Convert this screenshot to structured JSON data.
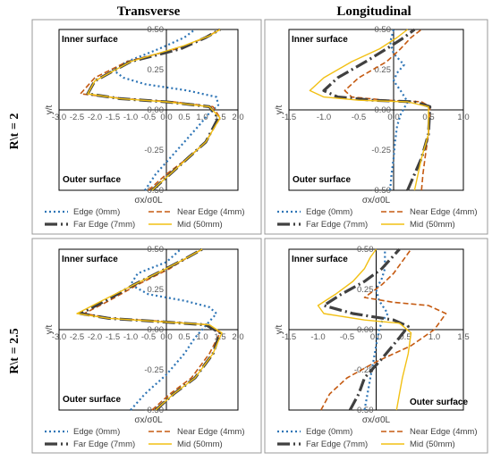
{
  "figure": {
    "column_titles": [
      "Transverse",
      "Longitudinal"
    ],
    "row_labels": [
      "R\\t = 2",
      "R\\t = 2.5"
    ]
  },
  "legend": [
    {
      "label": "Edge (0mm)",
      "color": "#2E75B6",
      "dash": "dotted"
    },
    {
      "label": "Near Edge (4mm)",
      "color": "#C55A11",
      "dash": "dashed"
    },
    {
      "label": "Far Edge (7mm)",
      "color": "#404040",
      "dash": "long-dash-dot"
    },
    {
      "label": "Mid (50mm)",
      "color": "#F2C014",
      "dash": "solid"
    }
  ],
  "chart_data": [
    {
      "type": "line",
      "title": "Transverse",
      "xlabel": "σx/σ0L",
      "ylabel": "y/t",
      "xlim": [
        -3.0,
        2.0
      ],
      "ylim": [
        -0.5,
        0.5
      ],
      "xticks": [
        "-3.0",
        "-2.5",
        "-2.0",
        "-1.5",
        "-1.0",
        "-0.5",
        "0.0",
        "0.5",
        "1.0",
        "1.5",
        "2.0"
      ],
      "yticks": [
        "-0.50",
        "-0.25",
        "0.00",
        "0.25",
        "0.50"
      ],
      "annotations": [
        "Inner surface",
        "Outer surface"
      ],
      "series": [
        {
          "name": "Edge (0mm)",
          "x": [
            -0.6,
            -0.3,
            0.1,
            0.5,
            0.9,
            1.2,
            1.45,
            1.4,
            0.6,
            -0.6,
            -1.2,
            -1.5,
            -1.1,
            -0.2,
            0.5,
            0.8
          ],
          "y": [
            -0.5,
            -0.4,
            -0.3,
            -0.2,
            -0.1,
            -0.02,
            0.03,
            0.08,
            0.12,
            0.16,
            0.2,
            0.25,
            0.3,
            0.38,
            0.45,
            0.5
          ]
        },
        {
          "name": "Near Edge (4mm)",
          "x": [
            -0.5,
            0.0,
            0.6,
            1.1,
            1.5,
            1.3,
            0.2,
            -1.2,
            -2.4,
            -2.0,
            -1.1,
            0.3,
            1.1,
            1.5
          ],
          "y": [
            -0.5,
            -0.4,
            -0.3,
            -0.2,
            -0.05,
            0.02,
            0.05,
            0.07,
            0.1,
            0.2,
            0.3,
            0.38,
            0.45,
            0.5
          ]
        },
        {
          "name": "Far Edge (7mm)",
          "x": [
            -0.4,
            0.1,
            0.6,
            1.1,
            1.45,
            1.2,
            0.0,
            -1.3,
            -2.2,
            -2.0,
            -1.0,
            0.4,
            1.1,
            1.5
          ],
          "y": [
            -0.5,
            -0.4,
            -0.3,
            -0.2,
            -0.05,
            0.02,
            0.05,
            0.07,
            0.1,
            0.18,
            0.3,
            0.38,
            0.45,
            0.5
          ]
        },
        {
          "name": "Mid (50mm)",
          "x": [
            -0.4,
            0.1,
            0.6,
            1.1,
            1.5,
            1.2,
            0.0,
            -1.3,
            -2.2,
            -2.0,
            -1.0,
            0.5,
            1.2,
            1.5
          ],
          "y": [
            -0.5,
            -0.4,
            -0.3,
            -0.2,
            -0.05,
            0.02,
            0.05,
            0.07,
            0.1,
            0.18,
            0.3,
            0.4,
            0.46,
            0.5
          ]
        }
      ]
    },
    {
      "type": "line",
      "title": "Longitudinal",
      "xlabel": "σx/σ0L",
      "ylabel": "y/t",
      "xlim": [
        -1.5,
        1.0
      ],
      "ylim": [
        -0.5,
        0.5
      ],
      "xticks": [
        "-1.5",
        "-1.0",
        "-0.5",
        "0.0",
        "0.5",
        "1.0"
      ],
      "yticks": [
        "-0.50",
        "-0.25",
        "0.00",
        "0.25",
        "0.50"
      ],
      "annotations": [
        "Inner surface",
        "Outer surface"
      ],
      "series": [
        {
          "name": "Edge (0mm)",
          "x": [
            -0.05,
            -0.03,
            0.0,
            0.02,
            0.05,
            0.1,
            0.2,
            0.1,
            0.0,
            0.05,
            0.15,
            0.0,
            -0.05,
            0.0
          ],
          "y": [
            -0.5,
            -0.4,
            -0.3,
            -0.2,
            -0.1,
            -0.03,
            0.05,
            0.12,
            0.18,
            0.23,
            0.28,
            0.35,
            0.42,
            0.5
          ]
        },
        {
          "name": "Near Edge (4mm)",
          "x": [
            0.4,
            0.42,
            0.45,
            0.5,
            0.52,
            0.4,
            -0.1,
            -0.6,
            -0.7,
            -0.5,
            -0.1,
            0.1,
            0.25,
            0.4
          ],
          "y": [
            -0.5,
            -0.4,
            -0.3,
            -0.15,
            0.02,
            0.05,
            0.06,
            0.08,
            0.12,
            0.2,
            0.3,
            0.38,
            0.45,
            0.5
          ]
        },
        {
          "name": "Far Edge (7mm)",
          "x": [
            0.2,
            0.3,
            0.4,
            0.5,
            0.52,
            0.3,
            -0.3,
            -0.8,
            -1.0,
            -0.8,
            -0.4,
            -0.1,
            0.15,
            0.3
          ],
          "y": [
            -0.5,
            -0.4,
            -0.3,
            -0.15,
            0.02,
            0.05,
            0.06,
            0.08,
            0.12,
            0.2,
            0.3,
            0.38,
            0.45,
            0.5
          ]
        },
        {
          "name": "Mid (50mm)",
          "x": [
            0.3,
            0.35,
            0.4,
            0.5,
            0.5,
            0.2,
            -0.5,
            -1.0,
            -1.2,
            -1.0,
            -0.6,
            -0.2,
            0.05,
            0.2
          ],
          "y": [
            -0.5,
            -0.4,
            -0.3,
            -0.15,
            0.02,
            0.05,
            0.06,
            0.08,
            0.12,
            0.2,
            0.3,
            0.38,
            0.45,
            0.5
          ]
        }
      ]
    },
    {
      "type": "line",
      "title": "Transverse",
      "xlabel": "σx/σ0L",
      "ylabel": "y/t",
      "xlim": [
        -3.0,
        2.0
      ],
      "ylim": [
        -0.5,
        0.5
      ],
      "xticks": [
        "-3.0",
        "-2.5",
        "-2.0",
        "-1.5",
        "-1.0",
        "-0.5",
        "0.0",
        "0.5",
        "1.0",
        "1.5",
        "2.0"
      ],
      "yticks": [
        "-0.50",
        "-0.25",
        "0.00",
        "0.25",
        "0.50"
      ],
      "annotations": [
        "Inner surface",
        "Outer surface"
      ],
      "series": [
        {
          "name": "Edge (0mm)",
          "x": [
            -1.0,
            -0.6,
            0.0,
            0.5,
            0.8,
            1.0,
            1.2,
            1.4,
            1.2,
            0.5,
            -0.5,
            -1.0,
            -0.8,
            0.0,
            0.4
          ],
          "y": [
            -0.5,
            -0.4,
            -0.28,
            -0.15,
            -0.05,
            0.0,
            0.05,
            0.1,
            0.14,
            0.18,
            0.22,
            0.28,
            0.35,
            0.42,
            0.5
          ]
        },
        {
          "name": "Near Edge (4mm)",
          "x": [
            -0.4,
            0.1,
            0.7,
            1.2,
            1.5,
            1.2,
            0.0,
            -1.5,
            -2.3,
            -1.6,
            -0.8,
            0.1,
            0.6,
            1.0
          ],
          "y": [
            -0.5,
            -0.4,
            -0.3,
            -0.15,
            -0.02,
            0.03,
            0.05,
            0.07,
            0.1,
            0.18,
            0.28,
            0.38,
            0.45,
            0.5
          ]
        },
        {
          "name": "Far Edge (7mm)",
          "x": [
            -0.3,
            0.2,
            0.8,
            1.3,
            1.5,
            1.1,
            -0.2,
            -1.6,
            -2.4,
            -1.7,
            -0.9,
            0.0,
            0.6,
            1.0
          ],
          "y": [
            -0.5,
            -0.4,
            -0.3,
            -0.15,
            -0.02,
            0.03,
            0.05,
            0.07,
            0.1,
            0.18,
            0.28,
            0.38,
            0.45,
            0.5
          ]
        },
        {
          "name": "Mid (50mm)",
          "x": [
            -0.3,
            0.2,
            0.8,
            1.3,
            1.55,
            1.2,
            -0.2,
            -1.6,
            -2.5,
            -1.8,
            -0.9,
            0.0,
            0.6,
            1.0
          ],
          "y": [
            -0.5,
            -0.4,
            -0.3,
            -0.15,
            -0.02,
            0.03,
            0.05,
            0.07,
            0.1,
            0.18,
            0.28,
            0.38,
            0.45,
            0.5
          ]
        }
      ]
    },
    {
      "type": "line",
      "title": "Longitudinal",
      "xlabel": "σx/σ0L",
      "ylabel": "y/t",
      "xlim": [
        -1.5,
        1.5
      ],
      "ylim": [
        -0.5,
        0.5
      ],
      "xticks": [
        "-1.5",
        "-1.0",
        "-0.5",
        "0.0",
        "0.5",
        "1.0",
        "1.5"
      ],
      "yticks": [
        "-0.50",
        "-0.25",
        "0.00",
        "0.25",
        "0.50"
      ],
      "annotations": [
        "Inner surface",
        "Outer surface"
      ],
      "series": [
        {
          "name": "Edge (0mm)",
          "x": [
            -0.2,
            -0.15,
            -0.1,
            -0.05,
            0.0,
            0.05,
            0.1,
            0.2,
            0.05,
            0.0,
            0.1,
            0.15,
            0.15,
            0.15
          ],
          "y": [
            -0.5,
            -0.4,
            -0.3,
            -0.2,
            -0.1,
            0.0,
            0.05,
            0.1,
            0.18,
            0.25,
            0.32,
            0.38,
            0.45,
            0.5
          ]
        },
        {
          "name": "Near Edge (4mm)",
          "x": [
            -0.95,
            -0.8,
            -0.5,
            0.0,
            0.6,
            1.0,
            1.2,
            0.9,
            0.3,
            -0.2,
            0.1,
            0.3,
            0.5,
            0.6
          ],
          "y": [
            -0.5,
            -0.4,
            -0.3,
            -0.2,
            -0.1,
            0.0,
            0.1,
            0.15,
            0.17,
            0.2,
            0.28,
            0.35,
            0.45,
            0.5
          ]
        },
        {
          "name": "Far Edge (7mm)",
          "x": [
            -0.45,
            -0.3,
            -0.2,
            0.1,
            0.4,
            0.55,
            0.3,
            -0.4,
            -0.9,
            -0.6,
            -0.2,
            0.1,
            0.3,
            0.4
          ],
          "y": [
            -0.5,
            -0.4,
            -0.3,
            -0.18,
            -0.05,
            0.02,
            0.06,
            0.1,
            0.15,
            0.22,
            0.3,
            0.38,
            0.46,
            0.5
          ]
        },
        {
          "name": "Mid (50mm)",
          "x": [
            0.35,
            0.4,
            0.45,
            0.55,
            0.6,
            0.4,
            -0.2,
            -0.9,
            -1.0,
            -0.7,
            -0.4,
            -0.2,
            -0.1,
            0.0
          ],
          "y": [
            -0.5,
            -0.4,
            -0.3,
            -0.15,
            -0.02,
            0.04,
            0.06,
            0.1,
            0.15,
            0.22,
            0.3,
            0.38,
            0.45,
            0.5
          ]
        }
      ]
    }
  ]
}
